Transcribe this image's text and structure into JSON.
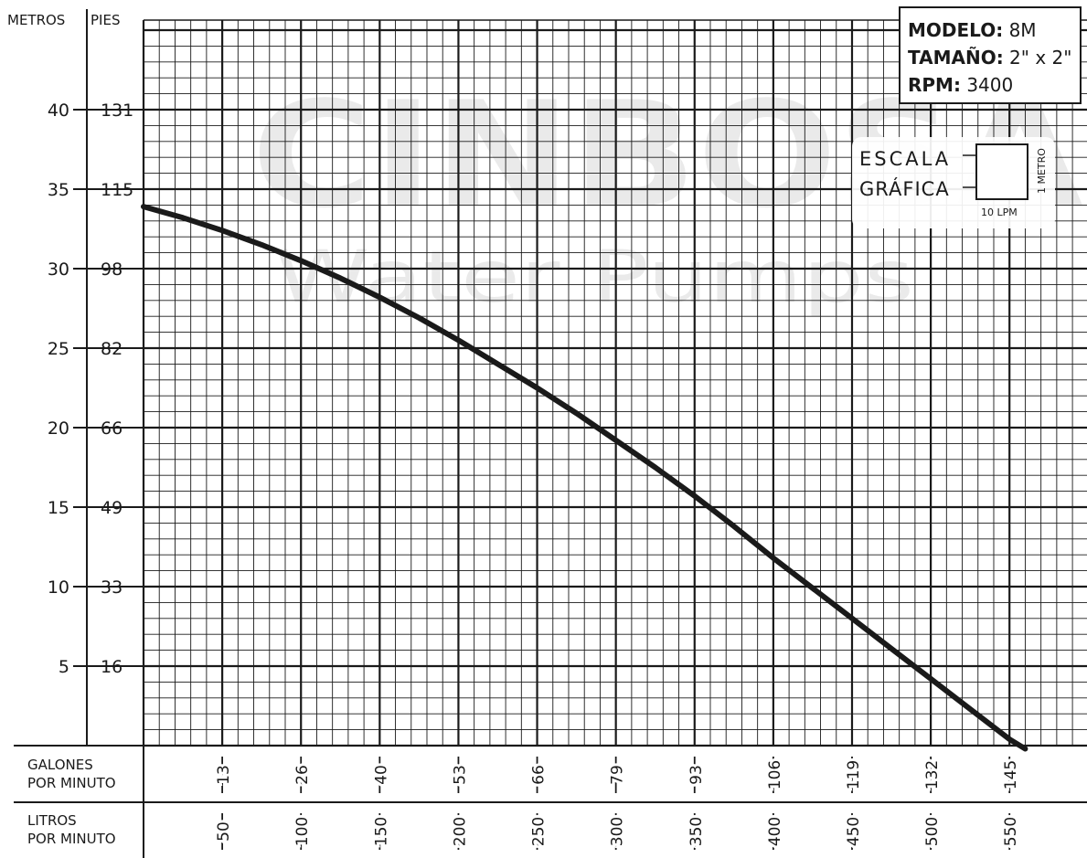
{
  "header": {
    "metros": "METROS",
    "pies": "PIES"
  },
  "info_box": {
    "modelo_label": "MODELO:",
    "modelo_value": "8M",
    "tamano_label": "TAMAÑO:",
    "tamano_value": "2\" x 2\"",
    "rpm_label": "RPM:",
    "rpm_value": "3400"
  },
  "scale_legend": {
    "line1": "ESCALA",
    "line2": "GRÁFICA",
    "vertical": "1 METRO",
    "horizontal": "10 LPM"
  },
  "watermark": {
    "brand": "CINBOSA",
    "tagline": "Water Pumps"
  },
  "colors": {
    "grid": "#1a1a1a",
    "curve": "#1a1a1a",
    "watermark": "#d9d9d9"
  },
  "chart_data": {
    "type": "line",
    "xlabel_rows": [
      "GALONES\nPOR MINUTO",
      "LITROS\nPOR MINUTO"
    ],
    "x_unit": "LPM",
    "xlim": [
      0,
      600
    ],
    "ylim": [
      0,
      41
    ],
    "y_ticks_metros": [
      "5",
      "10",
      "15",
      "20",
      "25",
      "30",
      "35",
      "40"
    ],
    "y_ticks_pies": [
      "16",
      "33",
      "49",
      "66",
      "82",
      "98",
      "115",
      "131"
    ],
    "x_ticks_galones": [
      "13",
      "26",
      "40",
      "53",
      "66",
      "79",
      "93",
      "106",
      "119",
      "132",
      "145"
    ],
    "x_ticks_litros": [
      "50",
      "100",
      "150",
      "200",
      "250",
      "300",
      "350",
      "400",
      "450",
      "500",
      "550"
    ],
    "grid": true,
    "series": [
      {
        "x": [
          0,
          25,
          50,
          75,
          100,
          125,
          150,
          175,
          200,
          225,
          250,
          275,
          300,
          325,
          350,
          375,
          400,
          425,
          450,
          475,
          500,
          525,
          550,
          560
        ],
        "y": [
          33.9,
          33.2,
          32.4,
          31.5,
          30.5,
          29.4,
          28.2,
          26.9,
          25.5,
          24.0,
          22.5,
          20.9,
          19.2,
          17.5,
          15.7,
          13.8,
          11.8,
          9.9,
          8.0,
          6.1,
          4.2,
          2.3,
          0.4,
          -0.2
        ]
      }
    ]
  }
}
